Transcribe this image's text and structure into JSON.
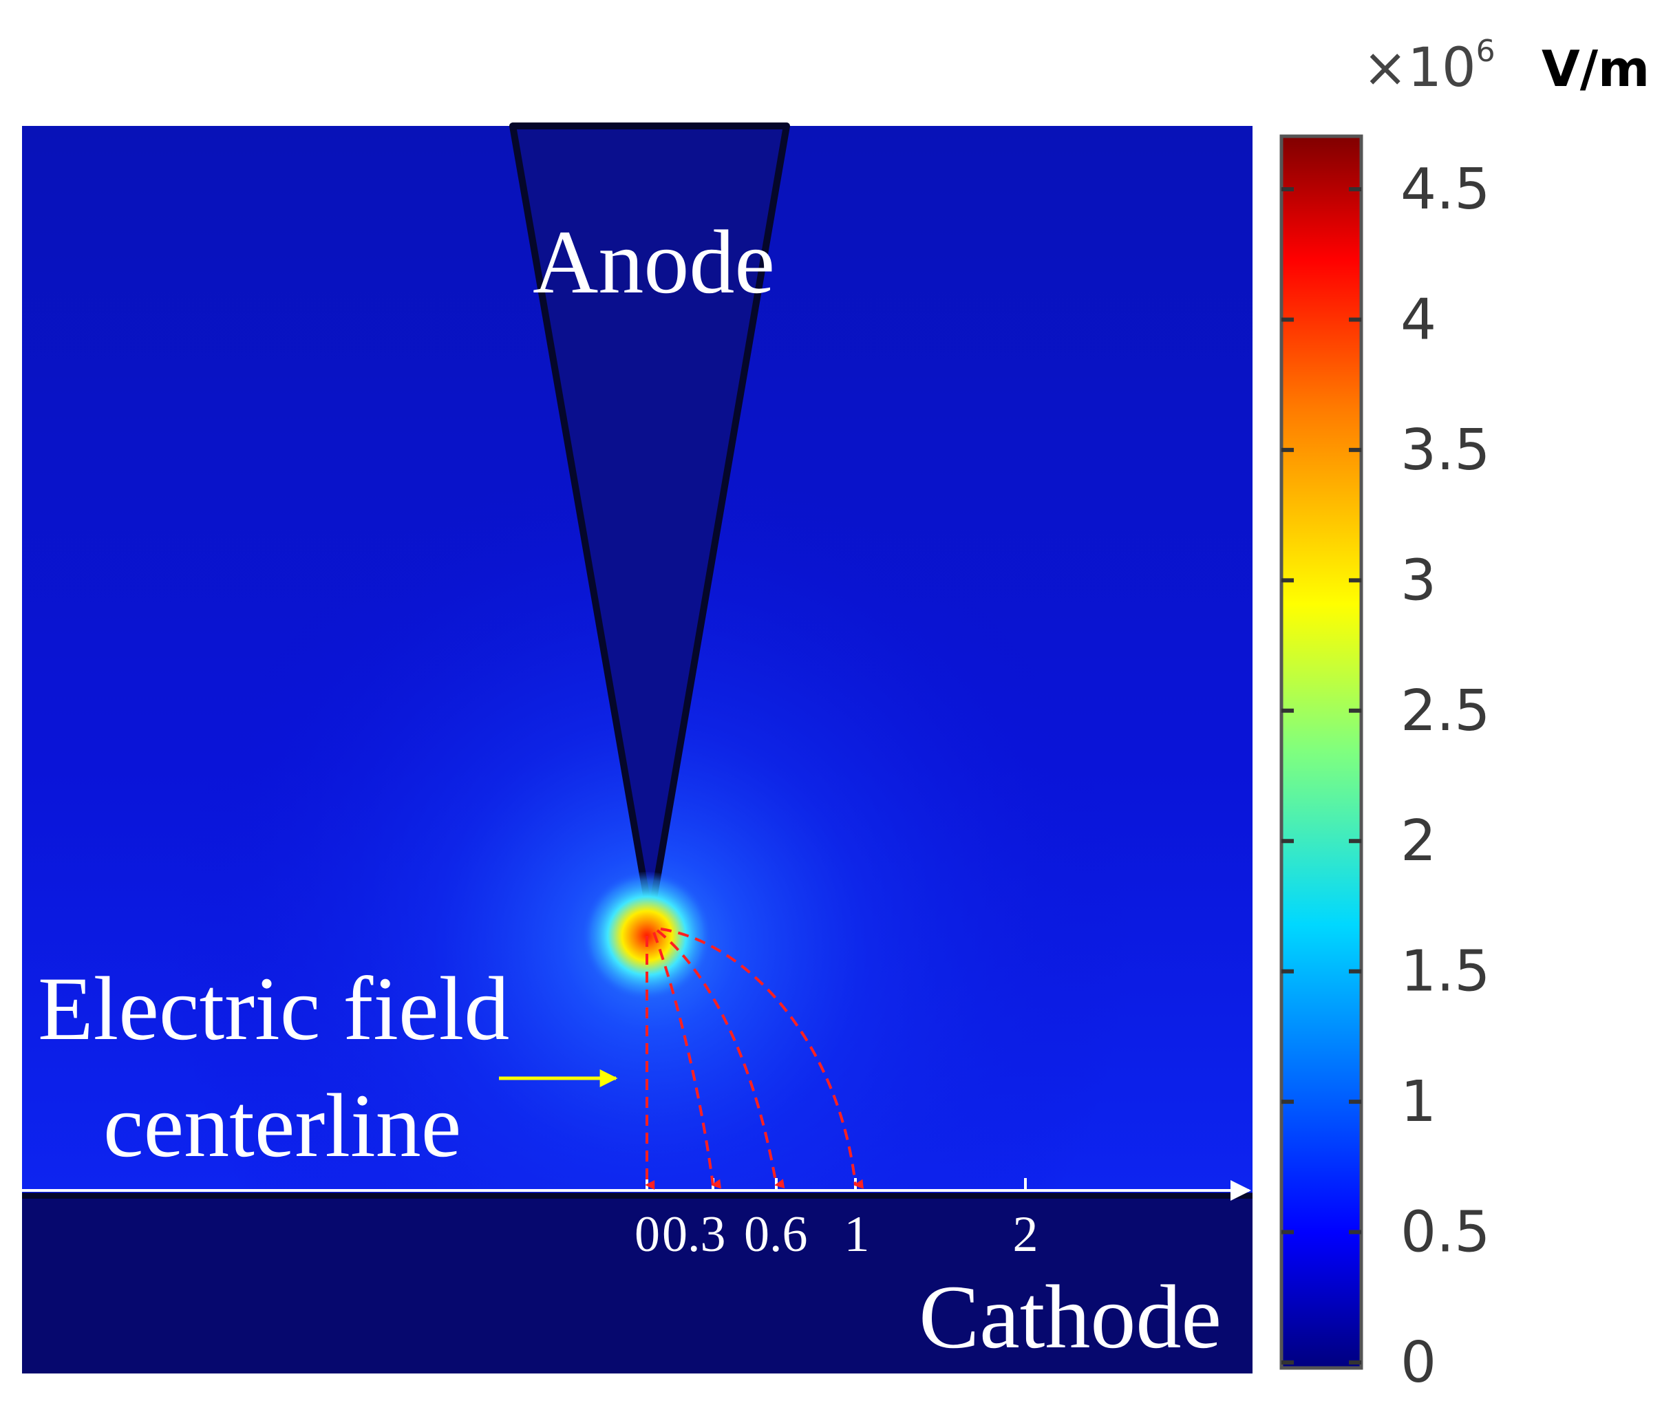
{
  "figure": {
    "anode_label": "Anode",
    "cathode_label": "Cathode",
    "annotation_line1": "Electric field",
    "annotation_line2": "centerline",
    "axis_ticks": [
      "0",
      "0.3",
      "0.6",
      "1",
      "2"
    ]
  },
  "colorbar": {
    "multiplier_prefix": "×10",
    "multiplier_exponent": "6",
    "unit": "V/m",
    "ticks": [
      "0",
      "0.5",
      "1",
      "1.5",
      "2",
      "2.5",
      "3",
      "3.5",
      "4",
      "4.5"
    ],
    "colormap": "jet",
    "range": [
      0,
      4.8
    ]
  },
  "colors": {
    "background_field": "#0a0fd6",
    "anode_fill": "#0b0f8c",
    "cathode_fill": "#06086e",
    "hotspot": "#ff2a00",
    "field_lines": "#ff2020",
    "annotation_arrow": "#ffff00"
  }
}
